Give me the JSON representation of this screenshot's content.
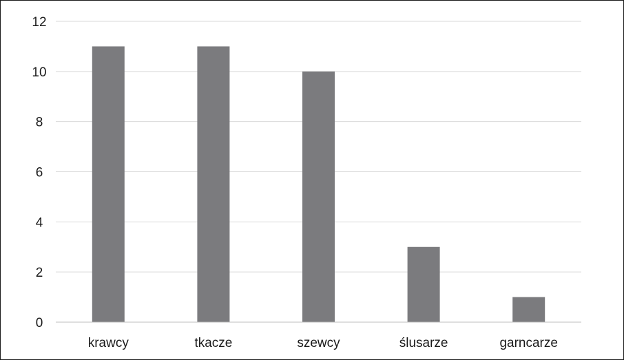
{
  "chart_data": {
    "type": "bar",
    "title": "",
    "xlabel": "",
    "ylabel": "",
    "categories": [
      "krawcy",
      "tkacze",
      "szewcy",
      "ślusarze",
      "garncarze"
    ],
    "values": [
      11,
      11,
      10,
      3,
      1
    ],
    "ylim": [
      0,
      12
    ],
    "yticks": [
      "0",
      "2",
      "4",
      "6",
      "8",
      "10",
      "12"
    ],
    "grid": true,
    "legend": "none",
    "colors": {
      "bar": "#7b7b7e",
      "grid": "#d9d9d9",
      "axis": "#bfbfbf",
      "text": "#1a1a1a"
    }
  }
}
